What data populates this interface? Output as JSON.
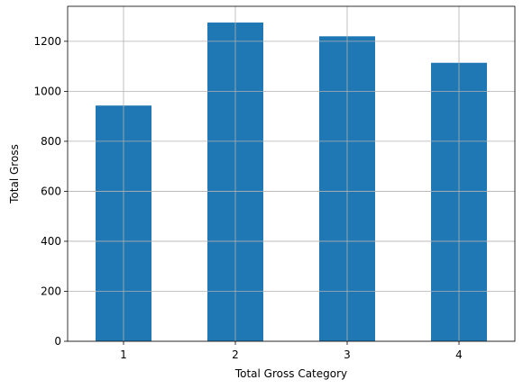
{
  "chart_data": {
    "type": "bar",
    "title": "",
    "xlabel": "Total Gross Category",
    "ylabel": "Total Gross",
    "categories": [
      "1",
      "2",
      "3",
      "4"
    ],
    "values": [
      943,
      1275,
      1220,
      1114
    ],
    "ylim": [
      0,
      1340
    ],
    "yticks": [
      0,
      200,
      400,
      600,
      800,
      1000,
      1200
    ],
    "ytick_labels": [
      "0",
      "200",
      "400",
      "600",
      "800",
      "1000",
      "1200"
    ],
    "grid": true,
    "bar_color": "#1f77b4"
  }
}
